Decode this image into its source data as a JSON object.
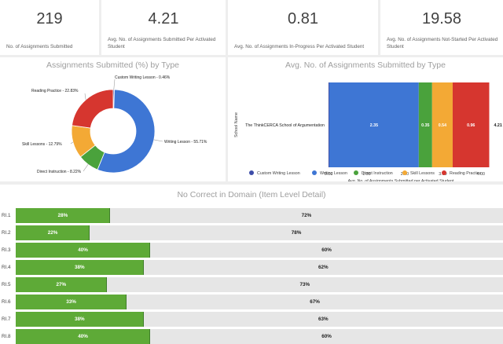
{
  "kpis": [
    {
      "value": "219",
      "label": "No. of Assignments Submitted"
    },
    {
      "value": "4.21",
      "label": "Avg. No. of Assignments Submitted Per Activated Student"
    },
    {
      "value": "0.81",
      "label": "Avg. No. of Assignments In-Progress Per Activated Student"
    },
    {
      "value": "19.58",
      "label": "Avg. No. of Assignments Not-Started Per Activated Student"
    }
  ],
  "colors": {
    "custom_writing": "#3d4da8",
    "writing": "#3e76d4",
    "direct": "#4aa23c",
    "skill": "#f3a935",
    "reading": "#d6362f",
    "correct": "#5eaa37",
    "remaining": "#e6e6e6"
  },
  "chart_data": [
    {
      "type": "pie",
      "title": "Assignments Submitted (%) by Type",
      "donut": true,
      "slices": [
        {
          "label": "Custom Writing Lesson",
          "value": 0.46,
          "display": "Custom Writing Lesson - 0.46%",
          "color": "#3d4da8"
        },
        {
          "label": "Writing Lesson",
          "value": 55.71,
          "display": "Writing Lesson - 55.71%",
          "color": "#3e76d4"
        },
        {
          "label": "Direct Instruction",
          "value": 8.22,
          "display": "Direct Instruction - 8.22%",
          "color": "#4aa23c"
        },
        {
          "label": "Skill Lessons",
          "value": 12.79,
          "display": "Skill Lessons - 12.79%",
          "color": "#f3a935"
        },
        {
          "label": "Reading Practice",
          "value": 22.83,
          "display": "Reading Practice - 22.83%",
          "color": "#d6362f"
        }
      ]
    },
    {
      "type": "bar",
      "orientation": "horizontal",
      "stacked": true,
      "title": "Avg. No. of Assignments Submitted by Type",
      "xlabel": "Avg. No. of Assignments Submitted per Activated Student",
      "ylabel": "School Name",
      "categories": [
        "The ThinkCERCA School of Argumentation"
      ],
      "xlim": [
        0,
        4.21
      ],
      "xticks": [
        "0.00",
        "1.00",
        "2.00",
        "3.00",
        "4.00"
      ],
      "total_label": "4.21",
      "legend_position": "bottom",
      "series": [
        {
          "name": "Custom Writing Lesson",
          "values": [
            0.02
          ],
          "labels": [
            "0.02"
          ],
          "color": "#3d4da8"
        },
        {
          "name": "Writing Lesson",
          "values": [
            2.35
          ],
          "labels": [
            "2.35"
          ],
          "color": "#3e76d4"
        },
        {
          "name": "Direct Instruction",
          "values": [
            0.35
          ],
          "labels": [
            "0.35"
          ],
          "color": "#4aa23c"
        },
        {
          "name": "Skill Lessons",
          "values": [
            0.54
          ],
          "labels": [
            "0.54"
          ],
          "color": "#f3a935"
        },
        {
          "name": "Reading Practice",
          "values": [
            0.96
          ],
          "labels": [
            "0.96"
          ],
          "color": "#d6362f"
        }
      ]
    },
    {
      "type": "bar",
      "orientation": "horizontal",
      "stacked": true,
      "title": "No Correct in Domain (Item Level Detail)",
      "categories": [
        "RI.1",
        "RI.2",
        "RI.3",
        "RI.4",
        "RI.5",
        "RI.6",
        "RI.7",
        "RI.8"
      ],
      "correct_percent": [
        28,
        22,
        40,
        38,
        27,
        33,
        38,
        40
      ],
      "correct_labels": [
        "28%",
        "22%",
        "40%",
        "38%",
        "27%",
        "33%",
        "38%",
        "40%"
      ],
      "remaining_percent": [
        72,
        78,
        60,
        62,
        73,
        67,
        63,
        60
      ],
      "remaining_labels": [
        "72%",
        "78%",
        "60%",
        "62%",
        "73%",
        "67%",
        "63%",
        "60%"
      ]
    }
  ]
}
